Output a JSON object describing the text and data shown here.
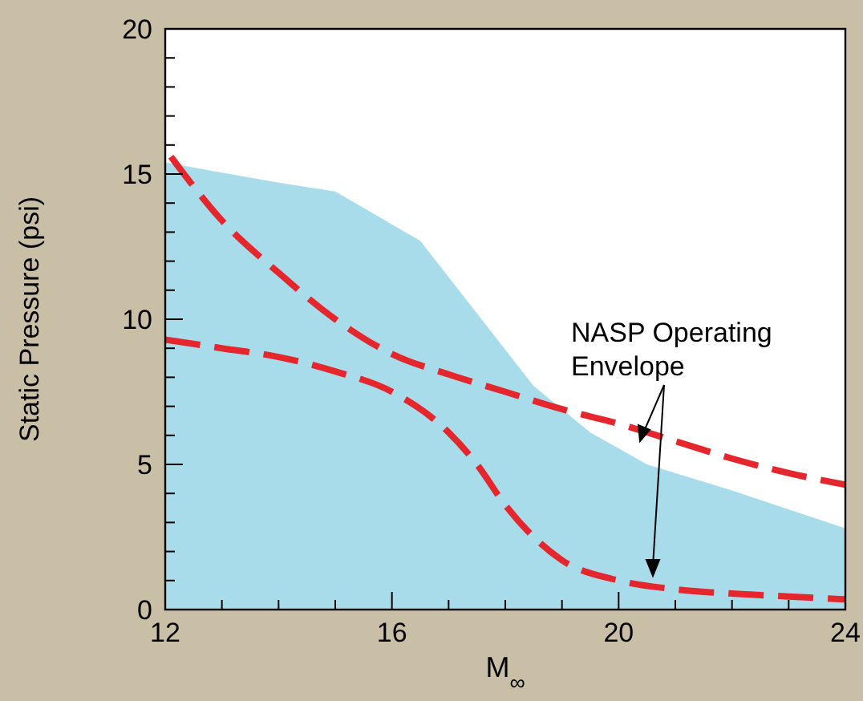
{
  "chart_data": {
    "type": "line",
    "xlabel": "M$_{∞}$",
    "ylabel": "Static Pressure (psi)",
    "annotations": [
      "NASP Operating\nEnvelope"
    ],
    "xlim": [
      12,
      24
    ],
    "ylim": [
      0,
      20
    ],
    "xticks": [
      12,
      {
        "value": 13,
        "label": null
      },
      {
        "value": 14,
        "label": null
      },
      {
        "value": 15,
        "label": null
      },
      16,
      {
        "value": 17,
        "label": null
      },
      {
        "value": 18,
        "label": null
      },
      {
        "value": 19,
        "label": null
      },
      20,
      {
        "value": 21,
        "label": null
      },
      {
        "value": 22,
        "label": null
      },
      {
        "value": 23,
        "label": null
      },
      24
    ],
    "yticks": [
      0,
      {
        "value": 1,
        "label": null
      },
      {
        "value": 2,
        "label": null
      },
      {
        "value": 3,
        "label": null
      },
      {
        "value": 4,
        "label": null
      },
      5,
      {
        "value": 6,
        "label": null
      },
      {
        "value": 7,
        "label": null
      },
      {
        "value": 8,
        "label": null
      },
      {
        "value": 9,
        "label": null
      },
      10,
      {
        "value": 11,
        "label": null
      },
      {
        "value": 12,
        "label": null
      },
      {
        "value": 13,
        "label": null
      },
      {
        "value": 14,
        "label": null
      },
      15,
      {
        "value": 16,
        "label": null
      },
      {
        "value": 17,
        "label": null
      },
      {
        "value": 18,
        "label": null
      },
      {
        "value": 19,
        "label": null
      },
      20
    ],
    "grid": false,
    "line_style": "dashed",
    "series": [
      {
        "type": "area",
        "color": "#a9dcea",
        "x": [
          12,
          14,
          15,
          16.5,
          17.5,
          18.5,
          19.5,
          20.5,
          22,
          24
        ],
        "values": [
          15.4,
          14.7,
          14.4,
          12.7,
          10.2,
          7.7,
          6.1,
          5.0,
          4.1,
          2.8
        ]
      },
      {
        "color": "#e5262c",
        "x": [
          12.1,
          13,
          14,
          15,
          16,
          17,
          18,
          19,
          20,
          21,
          22,
          23,
          24
        ],
        "values": [
          15.6,
          13.4,
          11.6,
          10.0,
          8.8,
          8.1,
          7.5,
          6.9,
          6.4,
          5.8,
          5.2,
          4.7,
          4.3
        ]
      },
      {
        "color": "#e5262c",
        "x": [
          12,
          13,
          14,
          15,
          16,
          17,
          17.5,
          18,
          18.5,
          19,
          20,
          21,
          22,
          23,
          24
        ],
        "values": [
          9.3,
          9.0,
          8.7,
          8.2,
          7.5,
          6.1,
          5.0,
          3.6,
          2.5,
          1.7,
          1.0,
          0.7,
          0.55,
          0.45,
          0.35
        ]
      }
    ]
  }
}
